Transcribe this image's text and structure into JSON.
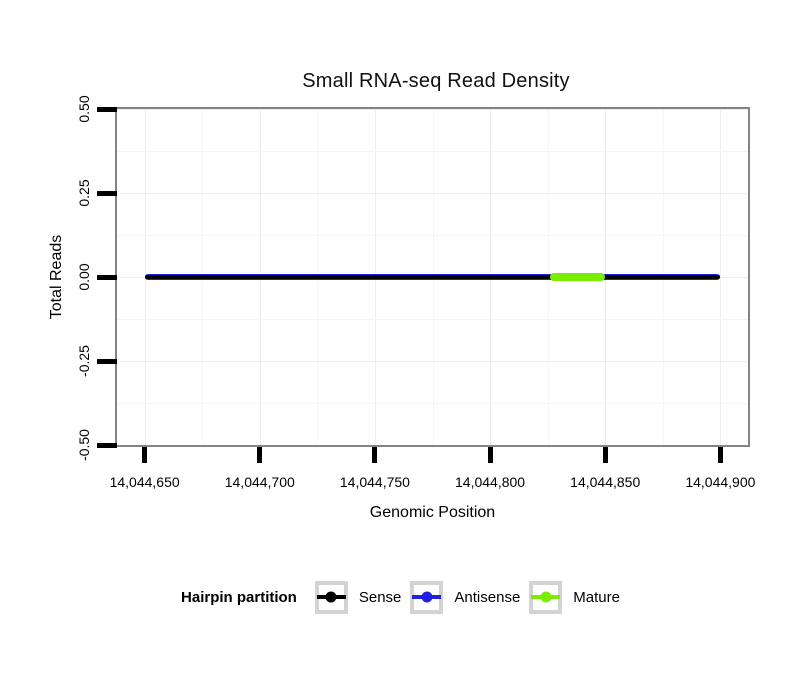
{
  "chart_data": {
    "type": "line",
    "title": "Small RNA-seq Read Density",
    "xlabel": "Genomic Position",
    "ylabel": "Total Reads",
    "xlim": [
      14044638,
      14044912
    ],
    "ylim": [
      -0.5,
      0.5
    ],
    "x_ticks": [
      {
        "value": 14044650,
        "label": "14,044,650"
      },
      {
        "value": 14044700,
        "label": "14,044,700"
      },
      {
        "value": 14044750,
        "label": "14,044,750"
      },
      {
        "value": 14044800,
        "label": "14,044,800"
      },
      {
        "value": 14044850,
        "label": "14,044,850"
      },
      {
        "value": 14044900,
        "label": "14,044,900"
      }
    ],
    "y_ticks": [
      {
        "value": 0.5,
        "label": "0.50"
      },
      {
        "value": 0.25,
        "label": "0.25"
      },
      {
        "value": 0,
        "label": "0.00"
      },
      {
        "value": -0.25,
        "label": "-0.25"
      },
      {
        "value": -0.5,
        "label": "-0.50"
      }
    ],
    "grid": {
      "major": true,
      "minor": true
    },
    "series": [
      {
        "name": "Antisense",
        "color": "#2020e0",
        "x_start": 14044650,
        "x_end": 14044900,
        "y": 0,
        "thickness_px": 6
      },
      {
        "name": "Sense",
        "color": "#000000",
        "x_start": 14044650,
        "x_end": 14044900,
        "y": 0,
        "thickness_px": 4
      },
      {
        "name": "Mature",
        "color": "#7bee00",
        "x_start": 14044826,
        "x_end": 14044850,
        "y": 0,
        "thickness_px": 8
      }
    ],
    "legend": {
      "title": "Hairpin partition",
      "position": "bottom",
      "entries": [
        {
          "label": "Sense",
          "color": "#000000"
        },
        {
          "label": "Antisense",
          "color": "#2020e0"
        },
        {
          "label": "Mature",
          "color": "#7bee00"
        }
      ]
    }
  },
  "colors": {
    "panel_border": "#848484",
    "tick": "#000000",
    "grid_major": "#ececec",
    "grid_minor": "#f5f5f5",
    "legend_key_border": "#d3d3d3",
    "background": "#ffffff"
  }
}
